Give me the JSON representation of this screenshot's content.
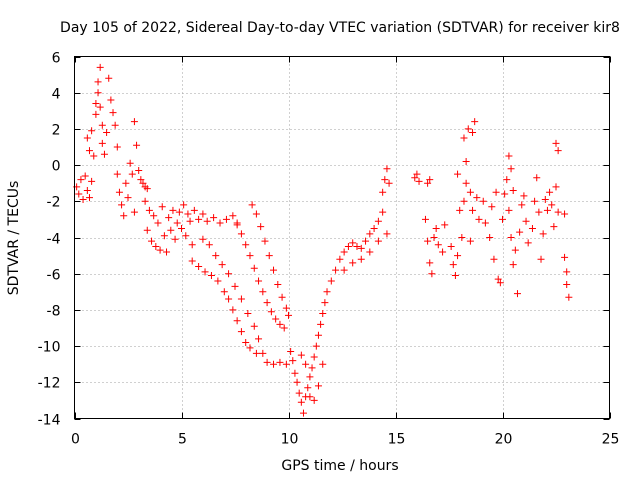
{
  "chart_data": {
    "type": "scatter",
    "title": "Day 105 of 2022, Sidereal Day-to-day VTEC variation (SDTVAR) for receiver kir8",
    "xlabel": "GPS time / hours",
    "ylabel": "SDTVAR / TECUs",
    "xlim": [
      0,
      25
    ],
    "ylim": [
      -14,
      6
    ],
    "xticks": [
      0,
      5,
      10,
      15,
      20,
      25
    ],
    "yticks": [
      -14,
      -12,
      -10,
      -8,
      -6,
      -4,
      -2,
      0,
      2,
      4,
      6
    ],
    "grid": true,
    "marker": "plus",
    "color": "#ff0000",
    "series": [
      {
        "name": "SDTVAR",
        "points": [
          [
            0.1,
            -1.2
          ],
          [
            0.2,
            -1.6
          ],
          [
            0.3,
            -0.8
          ],
          [
            0.4,
            -1.9
          ],
          [
            0.5,
            -0.6
          ],
          [
            0.6,
            -1.4
          ],
          [
            0.7,
            -1.8
          ],
          [
            0.8,
            -0.9
          ],
          [
            0.6,
            1.5
          ],
          [
            0.7,
            0.8
          ],
          [
            0.8,
            1.9
          ],
          [
            0.9,
            0.5
          ],
          [
            1.0,
            2.8
          ],
          [
            1.0,
            3.4
          ],
          [
            1.1,
            4.0
          ],
          [
            1.1,
            4.6
          ],
          [
            1.2,
            5.4
          ],
          [
            1.2,
            3.2
          ],
          [
            1.3,
            2.2
          ],
          [
            1.3,
            1.2
          ],
          [
            1.4,
            0.6
          ],
          [
            1.5,
            1.8
          ],
          [
            1.6,
            4.8
          ],
          [
            1.7,
            3.6
          ],
          [
            1.8,
            2.9
          ],
          [
            1.9,
            2.2
          ],
          [
            2.0,
            1.0
          ],
          [
            2.0,
            -0.5
          ],
          [
            2.1,
            -1.5
          ],
          [
            2.2,
            -2.2
          ],
          [
            2.3,
            -2.8
          ],
          [
            2.4,
            -1.0
          ],
          [
            2.5,
            -1.8
          ],
          [
            2.6,
            0.1
          ],
          [
            2.7,
            -0.5
          ],
          [
            2.8,
            2.4
          ],
          [
            2.8,
            -2.6
          ],
          [
            2.9,
            1.1
          ],
          [
            3.0,
            -0.3
          ],
          [
            3.1,
            -0.8
          ],
          [
            3.2,
            -1.0
          ],
          [
            3.3,
            -1.2
          ],
          [
            3.4,
            -1.3
          ],
          [
            3.3,
            -2.0
          ],
          [
            3.4,
            -3.6
          ],
          [
            3.5,
            -2.5
          ],
          [
            3.6,
            -4.2
          ],
          [
            3.7,
            -2.8
          ],
          [
            3.8,
            -4.5
          ],
          [
            3.9,
            -3.2
          ],
          [
            4.0,
            -4.7
          ],
          [
            4.1,
            -2.3
          ],
          [
            4.2,
            -3.9
          ],
          [
            4.3,
            -4.8
          ],
          [
            4.4,
            -2.9
          ],
          [
            4.5,
            -3.6
          ],
          [
            4.6,
            -2.5
          ],
          [
            4.7,
            -4.1
          ],
          [
            4.8,
            -3.2
          ],
          [
            4.9,
            -2.6
          ],
          [
            5.0,
            -3.5
          ],
          [
            5.1,
            -2.2
          ],
          [
            5.2,
            -3.9
          ],
          [
            5.3,
            -2.7
          ],
          [
            5.4,
            -3.1
          ],
          [
            5.5,
            -4.4
          ],
          [
            5.6,
            -2.5
          ],
          [
            5.8,
            -3.0
          ],
          [
            6.0,
            -2.7
          ],
          [
            6.2,
            -3.1
          ],
          [
            6.5,
            -2.9
          ],
          [
            6.8,
            -3.2
          ],
          [
            7.1,
            -3.0
          ],
          [
            7.4,
            -2.8
          ],
          [
            7.6,
            -3.3
          ],
          [
            5.5,
            -5.3
          ],
          [
            5.8,
            -5.6
          ],
          [
            6.1,
            -5.9
          ],
          [
            6.4,
            -6.1
          ],
          [
            6.7,
            -6.4
          ],
          [
            7.0,
            -7.0
          ],
          [
            7.2,
            -7.4
          ],
          [
            7.4,
            -8.0
          ],
          [
            7.6,
            -8.6
          ],
          [
            7.8,
            -9.2
          ],
          [
            8.0,
            -9.8
          ],
          [
            8.2,
            -10.1
          ],
          [
            8.5,
            -10.4
          ],
          [
            6.0,
            -4.1
          ],
          [
            6.3,
            -4.4
          ],
          [
            6.6,
            -5.0
          ],
          [
            6.9,
            -5.5
          ],
          [
            7.2,
            -6.0
          ],
          [
            7.5,
            -6.7
          ],
          [
            7.8,
            -7.4
          ],
          [
            8.1,
            -8.2
          ],
          [
            8.4,
            -8.9
          ],
          [
            8.6,
            -9.6
          ],
          [
            8.8,
            -10.4
          ],
          [
            9.0,
            -10.9
          ],
          [
            9.3,
            -11.0
          ],
          [
            9.6,
            -10.9
          ],
          [
            9.9,
            -11.0
          ],
          [
            7.6,
            -3.2
          ],
          [
            7.8,
            -3.8
          ],
          [
            8.0,
            -4.4
          ],
          [
            8.2,
            -5.0
          ],
          [
            8.4,
            -5.7
          ],
          [
            8.6,
            -6.4
          ],
          [
            8.8,
            -7.0
          ],
          [
            9.0,
            -7.6
          ],
          [
            9.2,
            -8.1
          ],
          [
            9.4,
            -8.5
          ],
          [
            9.6,
            -8.8
          ],
          [
            9.8,
            -9.0
          ],
          [
            8.3,
            -2.2
          ],
          [
            8.5,
            -2.7
          ],
          [
            8.7,
            -3.4
          ],
          [
            8.9,
            -4.2
          ],
          [
            9.1,
            -5.0
          ],
          [
            9.3,
            -5.8
          ],
          [
            9.5,
            -6.6
          ],
          [
            9.7,
            -7.3
          ],
          [
            9.9,
            -7.9
          ],
          [
            10.0,
            -8.3
          ],
          [
            10.1,
            -10.3
          ],
          [
            10.2,
            -10.8
          ],
          [
            10.3,
            -11.5
          ],
          [
            10.4,
            -12.0
          ],
          [
            10.5,
            -12.6
          ],
          [
            10.6,
            -13.1
          ],
          [
            10.7,
            -13.7
          ],
          [
            10.8,
            -12.8
          ],
          [
            10.9,
            -12.3
          ],
          [
            11.0,
            -11.7
          ],
          [
            11.1,
            -11.2
          ],
          [
            11.2,
            -10.6
          ],
          [
            11.3,
            -10.0
          ],
          [
            11.4,
            -9.4
          ],
          [
            11.5,
            -8.8
          ],
          [
            11.6,
            -8.2
          ],
          [
            11.7,
            -7.6
          ],
          [
            10.6,
            -10.5
          ],
          [
            10.8,
            -11.0
          ],
          [
            11.0,
            -12.8
          ],
          [
            11.2,
            -13.0
          ],
          [
            11.4,
            -12.2
          ],
          [
            11.6,
            -11.0
          ],
          [
            11.8,
            -7.0
          ],
          [
            12.0,
            -6.4
          ],
          [
            12.2,
            -5.8
          ],
          [
            12.4,
            -5.2
          ],
          [
            12.6,
            -4.8
          ],
          [
            12.8,
            -4.5
          ],
          [
            13.0,
            -4.3
          ],
          [
            13.2,
            -4.5
          ],
          [
            13.4,
            -4.6
          ],
          [
            13.6,
            -4.2
          ],
          [
            13.8,
            -3.8
          ],
          [
            14.0,
            -3.5
          ],
          [
            14.2,
            -3.1
          ],
          [
            14.4,
            -2.6
          ],
          [
            12.6,
            -5.8
          ],
          [
            13.0,
            -5.4
          ],
          [
            13.4,
            -5.2
          ],
          [
            13.8,
            -4.8
          ],
          [
            14.2,
            -4.2
          ],
          [
            14.6,
            -3.8
          ],
          [
            14.4,
            -1.5
          ],
          [
            14.5,
            -0.8
          ],
          [
            14.6,
            -0.2
          ],
          [
            14.7,
            -1.0
          ],
          [
            15.9,
            -0.7
          ],
          [
            16.0,
            -0.5
          ],
          [
            16.1,
            -0.9
          ],
          [
            16.5,
            -1.0
          ],
          [
            16.6,
            -0.8
          ],
          [
            16.4,
            -3.0
          ],
          [
            16.5,
            -4.2
          ],
          [
            16.6,
            -5.4
          ],
          [
            16.7,
            -6.0
          ],
          [
            16.8,
            -4.0
          ],
          [
            16.9,
            -3.5
          ],
          [
            17.0,
            -4.4
          ],
          [
            17.2,
            -4.8
          ],
          [
            17.3,
            -3.3
          ],
          [
            17.6,
            -4.5
          ],
          [
            17.7,
            -5.5
          ],
          [
            17.8,
            -6.1
          ],
          [
            17.9,
            -5.0
          ],
          [
            17.9,
            -0.5
          ],
          [
            18.0,
            -2.5
          ],
          [
            18.1,
            -4.0
          ],
          [
            18.2,
            -2.0
          ],
          [
            18.2,
            1.5
          ],
          [
            18.3,
            -1.0
          ],
          [
            18.3,
            0.2
          ],
          [
            18.4,
            2.0
          ],
          [
            18.5,
            -1.5
          ],
          [
            18.5,
            -4.2
          ],
          [
            18.6,
            1.8
          ],
          [
            18.6,
            -2.5
          ],
          [
            18.7,
            2.4
          ],
          [
            18.8,
            -1.8
          ],
          [
            18.9,
            -3.0
          ],
          [
            19.1,
            -2.0
          ],
          [
            19.2,
            -3.2
          ],
          [
            19.4,
            -4.0
          ],
          [
            19.5,
            -2.3
          ],
          [
            19.6,
            -5.2
          ],
          [
            19.7,
            -1.5
          ],
          [
            19.8,
            -6.3
          ],
          [
            19.9,
            -6.5
          ],
          [
            20.0,
            -3.0
          ],
          [
            20.1,
            -1.6
          ],
          [
            20.2,
            -0.8
          ],
          [
            20.3,
            -2.5
          ],
          [
            20.4,
            -4.0
          ],
          [
            20.5,
            -5.5
          ],
          [
            20.6,
            -4.7
          ],
          [
            20.7,
            -7.1
          ],
          [
            20.8,
            -3.7
          ],
          [
            20.3,
            0.5
          ],
          [
            20.4,
            -0.2
          ],
          [
            20.5,
            -1.4
          ],
          [
            20.9,
            -2.2
          ],
          [
            21.0,
            -1.7
          ],
          [
            21.1,
            -3.1
          ],
          [
            21.2,
            -4.3
          ],
          [
            21.4,
            -3.5
          ],
          [
            21.5,
            -2.0
          ],
          [
            21.6,
            -0.7
          ],
          [
            21.7,
            -2.6
          ],
          [
            21.8,
            -5.2
          ],
          [
            21.9,
            -3.8
          ],
          [
            22.0,
            -1.9
          ],
          [
            22.1,
            -2.5
          ],
          [
            22.2,
            -1.5
          ],
          [
            22.3,
            -2.2
          ],
          [
            22.4,
            -3.4
          ],
          [
            22.5,
            -1.2
          ],
          [
            22.6,
            -2.6
          ],
          [
            22.5,
            1.2
          ],
          [
            22.6,
            0.8
          ],
          [
            22.9,
            -2.7
          ],
          [
            22.9,
            -5.1
          ],
          [
            23.0,
            -5.9
          ],
          [
            23.0,
            -6.6
          ],
          [
            23.1,
            -7.3
          ]
        ]
      }
    ]
  }
}
